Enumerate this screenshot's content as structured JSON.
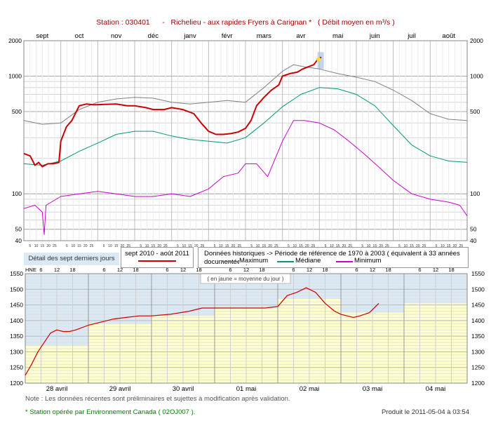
{
  "header": {
    "title": "Station : 030401      -   Richelieu - aux rapides Fryers à Carignan *   ( Débit moyen en m³/s )"
  },
  "chart_data": [
    {
      "type": "line",
      "yscale": "log",
      "ylim": [
        40,
        2000
      ],
      "yticks": [
        "2000",
        "1000",
        "500",
        "100",
        "50",
        "40"
      ],
      "months": [
        "sept",
        "oct",
        "nov",
        "déc",
        "janv",
        "févr",
        "mars",
        "avr",
        "mai",
        "juin",
        "juil",
        "août"
      ],
      "last_days_tick_labels": [
        "5",
        "10",
        "15",
        "20",
        "25"
      ],
      "grid": true,
      "highlight_label": "Détail des sept derniers jours",
      "legend": {
        "current_label": "sept 2010 - août 2011",
        "historical_title": "Données historiques -> Période de référence  de 1970 à 2003   ( équivalent à 33 années documentées )",
        "max_label": "Maximum",
        "median_label": "Médiane",
        "min_label": "Minimum"
      },
      "x_unit": "month index (0 = start of sept 2010, 12 = end of août 2011)",
      "series": [
        {
          "name": "sept 2010 - août 2011",
          "color": "#cc0000",
          "x": [
            0,
            0.17,
            0.3,
            0.4,
            0.5,
            0.65,
            0.8,
            0.95,
            1.0,
            1.15,
            1.3,
            1.5,
            1.7,
            1.9,
            2.2,
            2.5,
            2.8,
            3.0,
            3.3,
            3.5,
            3.8,
            4.0,
            4.3,
            4.6,
            4.8,
            5.0,
            5.2,
            5.4,
            5.6,
            5.8,
            6.0,
            6.15,
            6.3,
            6.5,
            6.7,
            6.9,
            7.0,
            7.2,
            7.4,
            7.55,
            7.7,
            7.85,
            7.95,
            8.05
          ],
          "values": [
            220,
            210,
            175,
            185,
            170,
            180,
            180,
            185,
            280,
            370,
            420,
            560,
            580,
            570,
            575,
            580,
            560,
            560,
            540,
            520,
            520,
            540,
            520,
            480,
            400,
            340,
            320,
            320,
            325,
            335,
            360,
            420,
            560,
            660,
            760,
            840,
            1000,
            1050,
            1080,
            1150,
            1200,
            1250,
            1380,
            1450
          ]
        },
        {
          "name": "Maximum",
          "color": "#808080",
          "x": [
            0,
            0.5,
            1.0,
            1.5,
            2.0,
            2.5,
            3.0,
            3.5,
            4.0,
            4.5,
            5.0,
            5.5,
            6.0,
            6.5,
            7.0,
            7.3,
            7.6,
            8.0,
            8.5,
            9.0,
            9.5,
            10.0,
            10.5,
            11.0,
            11.5,
            12.0
          ],
          "values": [
            420,
            390,
            400,
            520,
            600,
            640,
            660,
            650,
            600,
            580,
            600,
            620,
            600,
            800,
            1100,
            1250,
            1200,
            1150,
            1050,
            980,
            900,
            760,
            620,
            480,
            430,
            420
          ]
        },
        {
          "name": "Médiane",
          "color": "#009980",
          "x": [
            0,
            0.5,
            1.0,
            1.5,
            2.0,
            2.5,
            3.0,
            3.5,
            4.0,
            4.5,
            5.0,
            5.5,
            6.0,
            6.5,
            7.0,
            7.5,
            8.0,
            8.5,
            9.0,
            9.5,
            10.0,
            10.5,
            11.0,
            11.5,
            12.0
          ],
          "values": [
            180,
            175,
            190,
            230,
            270,
            320,
            340,
            340,
            310,
            290,
            280,
            270,
            300,
            400,
            550,
            700,
            800,
            780,
            700,
            560,
            380,
            260,
            210,
            190,
            185
          ]
        },
        {
          "name": "Minimum",
          "color": "#cc00cc",
          "x": [
            0,
            0.3,
            0.5,
            0.55,
            0.6,
            1.0,
            1.5,
            2.0,
            2.5,
            3.0,
            3.5,
            4.0,
            4.5,
            5.0,
            5.4,
            5.8,
            6.0,
            6.3,
            6.6,
            7.0,
            7.3,
            7.6,
            8.0,
            8.4,
            8.8,
            9.2,
            9.6,
            10.0,
            10.5,
            11.0,
            11.5,
            11.8,
            12.0
          ],
          "values": [
            75,
            80,
            70,
            45,
            80,
            95,
            100,
            105,
            100,
            95,
            95,
            100,
            95,
            110,
            140,
            150,
            180,
            180,
            140,
            280,
            420,
            420,
            400,
            350,
            280,
            220,
            170,
            130,
            100,
            90,
            85,
            80,
            65
          ]
        }
      ]
    },
    {
      "type": "area",
      "ylabel": "HNE",
      "ylim": [
        1200,
        1550
      ],
      "yticks": [
        "1200",
        "1250",
        "1300",
        "1350",
        "1400",
        "1450",
        "1500",
        "1550"
      ],
      "hour_ticks": [
        "6",
        "12",
        "18"
      ],
      "days": [
        "28 avril",
        "29 avril",
        "30 avril",
        "01 mai",
        "02 mai",
        "03 mai",
        "04 mai"
      ],
      "annotation": "( en jaune = moyenne du jour )",
      "grid": true,
      "x_unit": "day index (0 = 28 avril 00:00)",
      "daily_mean": {
        "color": "#ffffcc",
        "values": [
          1320,
          1390,
          1415,
          1440,
          1470,
          1425,
          1455
        ]
      },
      "series": [
        {
          "name": "Débit",
          "color": "#cc0000",
          "x": [
            0,
            0.1,
            0.2,
            0.3,
            0.4,
            0.5,
            0.6,
            0.7,
            0.8,
            1.0,
            1.2,
            1.4,
            1.6,
            1.8,
            2.0,
            2.3,
            2.6,
            2.8,
            3.0,
            3.3,
            3.6,
            3.8,
            4.0,
            4.15,
            4.3,
            4.45,
            4.6,
            4.75,
            4.9,
            5.0,
            5.1,
            5.2,
            5.3,
            5.45,
            5.6
          ],
          "values": [
            1225,
            1260,
            1300,
            1330,
            1360,
            1370,
            1365,
            1365,
            1370,
            1385,
            1395,
            1405,
            1410,
            1415,
            1415,
            1420,
            1430,
            1440,
            1440,
            1440,
            1440,
            1440,
            1445,
            1480,
            1490,
            1505,
            1490,
            1455,
            1430,
            1420,
            1415,
            1410,
            1415,
            1425,
            1455
          ]
        }
      ]
    }
  ],
  "footer": {
    "note": "Note : Les données récentes sont préliminaires et sujettes à modification après validation.",
    "operator": "* Station opérée par Environnement Canada ( 02OJ007 ).",
    "produced": "Produit le 2011-05-04 à 03:54"
  }
}
